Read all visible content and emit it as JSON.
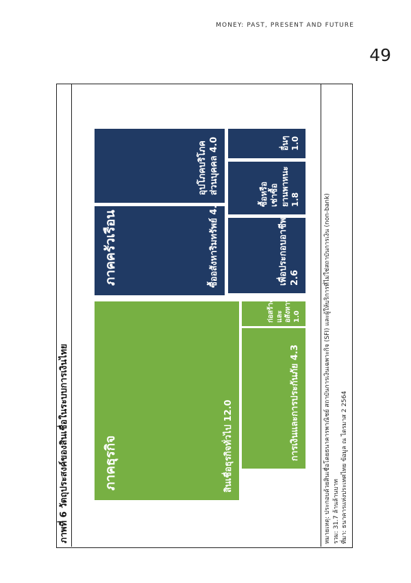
{
  "header": {
    "running_title": "MONEY: PAST, PRESENT AND FUTURE",
    "page_number": "49"
  },
  "figure": {
    "title": "ภาพที่ 6 วัตถุประสงค์ของสินเชื่อในระบบการเงินไทย",
    "notes": {
      "note": "หมายเหตุ: ประกอบด้วยสินเชื่อโดยธนาคารพาณิชย์ สถาบันการเงินเฉพาะกิจ (SFI) และผู้ให้บริการที่ไม่ใช่สถาบันการเงิน (non-bank)",
      "total": "รวม: 31.7 ล้านล้านบาท",
      "source": "ที่มา: ธนาคารแห่งประเทศไทย ข้อมูล ณ ไตรมาส 2 2564"
    }
  },
  "chart_data": {
    "type": "treemap",
    "title": "ภาพที่ 6 วัตถุประสงค์ของสินเชื่อในระบบการเงินไทย",
    "unit": "ล้านล้านบาท",
    "total_label": "รวม: 31.7 ล้านล้านบาท",
    "total_value": 31.7,
    "orientation": "rotated -90deg on page (text reads bottom-to-top)",
    "legend_position": "none",
    "colors": {
      "household": "#203A64",
      "business": "#77B043"
    },
    "groups": [
      {
        "name": "ภาคธุรกิจ",
        "color": "#77B043",
        "items": [
          {
            "label": "สินเชื่อธุรกิจทั่วไป",
            "value": 12.0
          },
          {
            "label": "การเงินและการประกันภัย",
            "value": 4.3
          },
          {
            "label": "ก่อสร้างและอสังหาฯ",
            "value": 1.0
          }
        ]
      },
      {
        "name": "ภาคครัวเรือน",
        "color": "#203A64",
        "items": [
          {
            "label": "ซื้ออสังหาริมทรัพย์",
            "value": 4.9
          },
          {
            "label": "อุปโภคบริโภคส่วนบุคคล",
            "value": 4.0
          },
          {
            "label": "เพื่อประกอบอาชีพ",
            "value": 2.6
          },
          {
            "label": "ซื้อหรือเช่าซื้อยานพาหนะ",
            "value": 1.8
          },
          {
            "label": "อื่นๆ",
            "value": 1.0
          }
        ]
      }
    ],
    "blocks": {
      "biz_main": {
        "sector": "ภาคธุรกิจ",
        "line1": "สินเชื่อธุรกิจทั่วไป 12.0"
      },
      "hh_main": {
        "sector": "ภาคครัวเรือน",
        "line1": "ซื้ออสังหาริมทรัพย์ 4.9"
      },
      "hh_cons": {
        "line1": "อุปโภคบริโภค",
        "line2": "ส่วนบุคคล 4.0"
      },
      "biz_fin": {
        "line1": "การเงินและการประกันภัย 4.3"
      },
      "biz_con": {
        "line1": "ก่อสร้าง",
        "line2": "และ",
        "line3": "อสังหาฯ",
        "line4": "1.0"
      },
      "hh_occ": {
        "line1": "เพื่อประกอบอาชีพ",
        "line2": "2.6"
      },
      "hh_veh": {
        "line1": "ซื้อหรือ",
        "line2": "เช่าซื้อ",
        "line3": "ยานพาหนะ",
        "line4": "1.8"
      },
      "hh_oth": {
        "line1": "อื่นๆ",
        "line2": "1.0"
      }
    }
  }
}
